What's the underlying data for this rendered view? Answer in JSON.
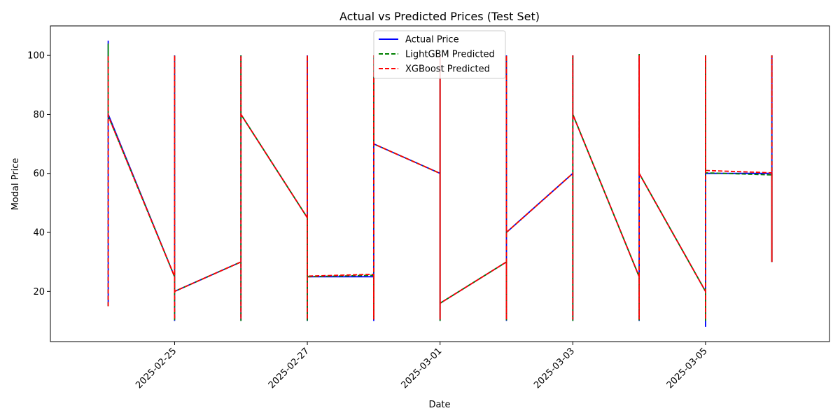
{
  "chart_data": {
    "type": "line",
    "title": "Actual vs Predicted Prices (Test Set)",
    "xlabel": "Date",
    "ylabel": "Modal Price",
    "ylim": [
      3,
      110
    ],
    "xlim": [
      "2025-02-23T03:05",
      "2025-03-06T20:50"
    ],
    "x_tick_labels": [
      "2025-02-25",
      "2025-02-27",
      "2025-03-01",
      "2025-03-03",
      "2025-03-05"
    ],
    "y_ticks": [
      20,
      40,
      60,
      80,
      100
    ],
    "grid": false,
    "legend_position": "top-center",
    "series": [
      {
        "name": "Actual Price",
        "color": "#0000ff",
        "dash": "solid",
        "points": [
          [
            "2025-02-24",
            15
          ],
          [
            "2025-02-24",
            105
          ],
          [
            "2025-02-24",
            80
          ],
          [
            "2025-02-25",
            25
          ],
          [
            "2025-02-25",
            10
          ],
          [
            "2025-02-25",
            100
          ],
          [
            "2025-02-25",
            20
          ],
          [
            "2025-02-26",
            30
          ],
          [
            "2025-02-26",
            10
          ],
          [
            "2025-02-26",
            100
          ],
          [
            "2025-02-26",
            80
          ],
          [
            "2025-02-27",
            45
          ],
          [
            "2025-02-27",
            10
          ],
          [
            "2025-02-27",
            100
          ],
          [
            "2025-02-27",
            25
          ],
          [
            "2025-02-28",
            25
          ],
          [
            "2025-02-28",
            10
          ],
          [
            "2025-02-28",
            100
          ],
          [
            "2025-02-28",
            70
          ],
          [
            "2025-03-01",
            60
          ],
          [
            "2025-03-01",
            10
          ],
          [
            "2025-03-01",
            100
          ],
          [
            "2025-03-01",
            16
          ],
          [
            "2025-03-02",
            30
          ],
          [
            "2025-03-02",
            10
          ],
          [
            "2025-03-02",
            100
          ],
          [
            "2025-03-02",
            40
          ],
          [
            "2025-03-03",
            60
          ],
          [
            "2025-03-03",
            10
          ],
          [
            "2025-03-03",
            100
          ],
          [
            "2025-03-03",
            80
          ],
          [
            "2025-03-04",
            25
          ],
          [
            "2025-03-04",
            10
          ],
          [
            "2025-03-04",
            100
          ],
          [
            "2025-03-04",
            60
          ],
          [
            "2025-03-05",
            20
          ],
          [
            "2025-03-05",
            8
          ],
          [
            "2025-03-05",
            100
          ],
          [
            "2025-03-05",
            60
          ],
          [
            "2025-03-06",
            60
          ],
          [
            "2025-03-06",
            30
          ],
          [
            "2025-03-06",
            100
          ],
          [
            "2025-03-06",
            80
          ]
        ]
      },
      {
        "name": "LightGBM Predicted",
        "color": "#008000",
        "dash": "dashed",
        "points": [
          [
            "2025-02-24",
            15
          ],
          [
            "2025-02-24",
            104
          ],
          [
            "2025-02-24",
            79.5
          ],
          [
            "2025-02-25",
            25
          ],
          [
            "2025-02-25",
            10
          ],
          [
            "2025-02-25",
            100
          ],
          [
            "2025-02-25",
            20
          ],
          [
            "2025-02-26",
            30
          ],
          [
            "2025-02-26",
            10
          ],
          [
            "2025-02-26",
            100
          ],
          [
            "2025-02-26",
            80
          ],
          [
            "2025-02-27",
            45
          ],
          [
            "2025-02-27",
            10
          ],
          [
            "2025-02-27",
            100
          ],
          [
            "2025-02-27",
            25
          ],
          [
            "2025-02-28",
            25.5
          ],
          [
            "2025-02-28",
            10.5
          ],
          [
            "2025-02-28",
            100
          ],
          [
            "2025-02-28",
            70
          ],
          [
            "2025-03-01",
            60
          ],
          [
            "2025-03-01",
            10
          ],
          [
            "2025-03-01",
            100
          ],
          [
            "2025-03-01",
            16
          ],
          [
            "2025-03-02",
            30
          ],
          [
            "2025-03-02",
            10
          ],
          [
            "2025-03-02",
            100
          ],
          [
            "2025-03-02",
            40
          ],
          [
            "2025-03-03",
            60
          ],
          [
            "2025-03-03",
            10
          ],
          [
            "2025-03-03",
            100
          ],
          [
            "2025-03-03",
            80
          ],
          [
            "2025-03-04",
            25
          ],
          [
            "2025-03-04",
            10
          ],
          [
            "2025-03-04",
            100.5
          ],
          [
            "2025-03-04",
            60
          ],
          [
            "2025-03-05",
            20
          ],
          [
            "2025-03-05",
            10
          ],
          [
            "2025-03-05",
            100
          ],
          [
            "2025-03-05",
            60.2
          ],
          [
            "2025-03-06",
            59.5
          ],
          [
            "2025-03-06",
            30
          ],
          [
            "2025-03-06",
            100
          ],
          [
            "2025-03-06",
            80
          ]
        ]
      },
      {
        "name": "XGBoost Predicted",
        "color": "#ff0000",
        "dash": "dashed",
        "points": [
          [
            "2025-02-24",
            15
          ],
          [
            "2025-02-24",
            100
          ],
          [
            "2025-02-24",
            79.5
          ],
          [
            "2025-02-25",
            25
          ],
          [
            "2025-02-25",
            10.5
          ],
          [
            "2025-02-25",
            100
          ],
          [
            "2025-02-25",
            20
          ],
          [
            "2025-02-26",
            30
          ],
          [
            "2025-02-26",
            10.5
          ],
          [
            "2025-02-26",
            100
          ],
          [
            "2025-02-26",
            80
          ],
          [
            "2025-02-27",
            45
          ],
          [
            "2025-02-27",
            10.5
          ],
          [
            "2025-02-27",
            100
          ],
          [
            "2025-02-27",
            25.2
          ],
          [
            "2025-02-28",
            25.8
          ],
          [
            "2025-02-28",
            10.5
          ],
          [
            "2025-02-28",
            100
          ],
          [
            "2025-02-28",
            70
          ],
          [
            "2025-03-01",
            60
          ],
          [
            "2025-03-01",
            10.5
          ],
          [
            "2025-03-01",
            100
          ],
          [
            "2025-03-01",
            16
          ],
          [
            "2025-03-02",
            30
          ],
          [
            "2025-03-02",
            10.5
          ],
          [
            "2025-03-02",
            100
          ],
          [
            "2025-03-02",
            40
          ],
          [
            "2025-03-03",
            60
          ],
          [
            "2025-03-03",
            10.5
          ],
          [
            "2025-03-03",
            100
          ],
          [
            "2025-03-03",
            80
          ],
          [
            "2025-03-04",
            25
          ],
          [
            "2025-03-04",
            10.5
          ],
          [
            "2025-03-04",
            100
          ],
          [
            "2025-03-04",
            60
          ],
          [
            "2025-03-05",
            20
          ],
          [
            "2025-03-05",
            10.5
          ],
          [
            "2025-03-05",
            100
          ],
          [
            "2025-03-05",
            61
          ],
          [
            "2025-03-06",
            60.2
          ],
          [
            "2025-03-06",
            30
          ],
          [
            "2025-03-06",
            100
          ],
          [
            "2025-03-06",
            80
          ]
        ]
      }
    ]
  }
}
